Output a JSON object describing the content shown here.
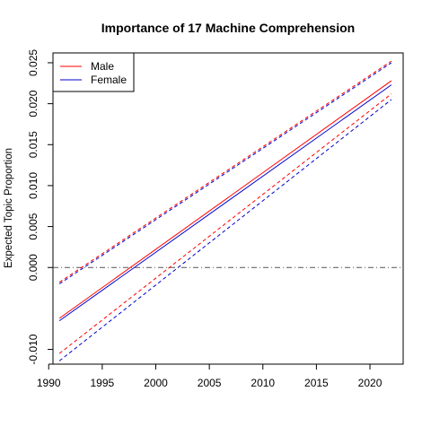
{
  "chart_data": {
    "type": "line",
    "title": "Importance of 17 Machine Comprehension",
    "xlabel": "",
    "ylabel": "Expected Topic Proportion",
    "xlim": [
      1990.4,
      2023.1
    ],
    "ylim": [
      -0.0118,
      0.0262
    ],
    "x_ticks": [
      1990,
      1995,
      2000,
      2005,
      2010,
      2015,
      2020
    ],
    "y_ticks": [
      -0.01,
      0.0,
      0.005,
      0.01,
      0.015,
      0.02,
      0.025
    ],
    "y_tick_labels": [
      "-0.010",
      "0.000",
      "0.005",
      "0.010",
      "0.015",
      "0.020",
      "0.025"
    ],
    "reference_line": {
      "y": 0.0,
      "style": "dash-dot",
      "color": "#555555"
    },
    "grid": false,
    "legend": {
      "position": "top-left",
      "entries": [
        "Male",
        "Female"
      ]
    },
    "series": [
      {
        "name": "Male",
        "color": "#ff0000",
        "x": [
          1991,
          2022
        ],
        "estimate": [
          -0.0062,
          0.0228
        ],
        "lower": [
          -0.0105,
          0.0212
        ],
        "upper": [
          -0.0018,
          0.0252
        ]
      },
      {
        "name": "Female",
        "color": "#0000cc",
        "x": [
          1991,
          2022
        ],
        "estimate": [
          -0.0065,
          0.0223
        ],
        "lower": [
          -0.0114,
          0.0205
        ],
        "upper": [
          -0.002,
          0.025
        ]
      }
    ]
  }
}
